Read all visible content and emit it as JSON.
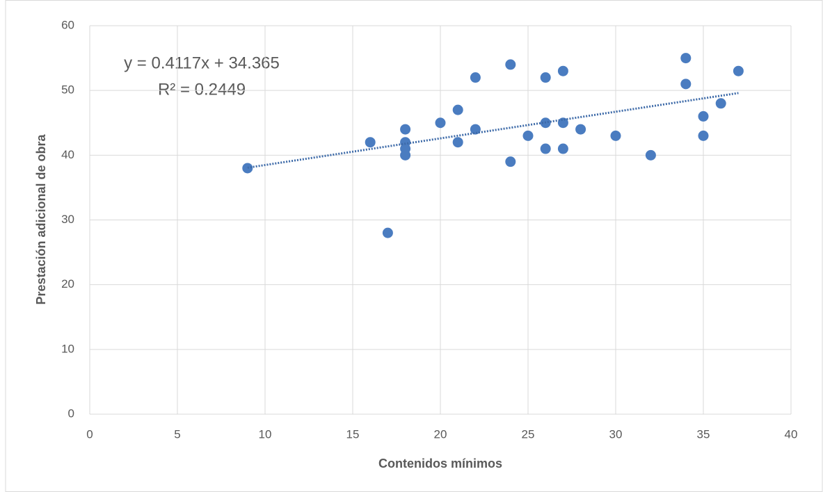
{
  "chart_data": {
    "type": "scatter",
    "x_label": "Contenidos mínimos",
    "y_label": "Prestación adicional de obra",
    "annotations": [
      "y = 0.4117x + 34.365",
      "R² = 0.2449"
    ],
    "x": [
      9,
      16,
      17,
      18,
      18,
      18,
      18,
      20,
      21,
      21,
      22,
      22,
      24,
      24,
      25,
      26,
      26,
      26,
      27,
      27,
      27,
      28,
      30,
      32,
      34,
      34,
      35,
      35,
      36,
      37
    ],
    "y": [
      38,
      42,
      28,
      44,
      42,
      41,
      40,
      45,
      47,
      42,
      52,
      44,
      54,
      39,
      43,
      52,
      45,
      41,
      53,
      45,
      41,
      44,
      43,
      40,
      55,
      51,
      46,
      43,
      48,
      53
    ],
    "color": "#4a7cc0",
    "trendline": {
      "slope": 0.4117,
      "intercept": 34.365,
      "color": "#3d6aa8"
    },
    "xlim": [
      0,
      40
    ],
    "xticks": [
      0,
      5,
      10,
      15,
      20,
      25,
      30,
      35,
      40
    ],
    "ylim": [
      0,
      60
    ],
    "yticks": [
      0,
      10,
      20,
      30,
      40,
      50,
      60
    ],
    "grid": true
  }
}
